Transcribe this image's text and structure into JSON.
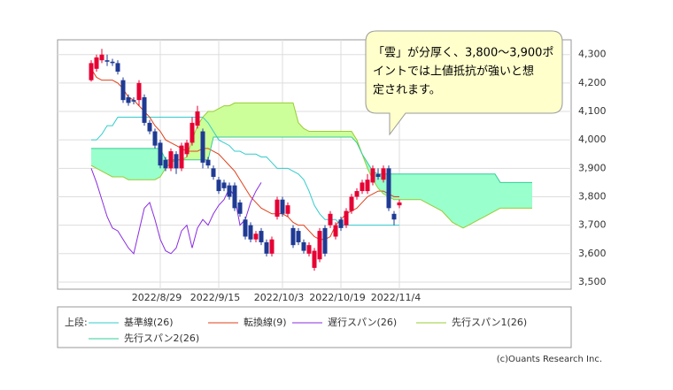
{
  "chart_data": {
    "type": "ichimoku",
    "legend_title": "上段:",
    "annotation": [
      "「雲」が分厚く、3,800～3,900ポ",
      "イントでは上値抵抗が強いと想",
      "定されます。"
    ],
    "source": "(c)Ouants Research Inc.",
    "ylim": [
      3475,
      4352
    ],
    "yticks": [
      {
        "value": 3500,
        "label": "3,500"
      },
      {
        "value": 3600,
        "label": "3,600"
      },
      {
        "value": 3700,
        "label": "3,700"
      },
      {
        "value": 3800,
        "label": "3,800"
      },
      {
        "value": 3900,
        "label": "3,900"
      },
      {
        "value": 4000,
        "label": "4,000"
      },
      {
        "value": 4100,
        "label": "4,100"
      },
      {
        "value": 4200,
        "label": "4,200"
      },
      {
        "value": 4300,
        "label": "4,300"
      }
    ],
    "grid": true,
    "up_color": "#e60033",
    "down_color": "#1f3a93",
    "cloud_up_color": "#ccff99",
    "cloud_down_color": "#99ffcc",
    "categories": [
      null,
      null,
      null,
      null,
      null,
      null,
      null,
      null,
      null,
      null,
      null,
      null,
      null,
      "2022/8/29",
      null,
      null,
      null,
      null,
      null,
      null,
      null,
      null,
      null,
      null,
      "2022/9/15",
      null,
      null,
      null,
      null,
      null,
      null,
      null,
      null,
      null,
      null,
      null,
      "2022/10/3",
      null,
      null,
      null,
      null,
      null,
      null,
      null,
      null,
      null,
      null,
      "2022/10/19",
      null,
      null,
      null,
      null,
      null,
      null,
      null,
      null,
      null,
      null,
      "2022/11/4",
      null,
      null,
      null,
      null,
      null,
      null,
      null,
      null,
      null,
      null,
      null,
      null,
      null,
      null,
      null,
      null,
      null,
      null,
      null,
      null,
      null,
      null,
      null,
      null,
      null
    ],
    "open": [
      4210,
      4250,
      4280,
      4280,
      4275,
      4270,
      4210,
      4150,
      4140,
      4140,
      4150,
      4060,
      4030,
      3990,
      3930,
      3900,
      3950,
      3900,
      3950,
      3990,
      4050,
      4030,
      3930,
      3900,
      3860,
      3850,
      3840,
      3840,
      3780,
      3720,
      3700,
      3650,
      3680,
      3640,
      3600,
      3730,
      3790,
      3740,
      3690,
      3680,
      3640,
      3600,
      3550,
      3580,
      3690,
      3700,
      3660,
      3720,
      3700,
      3750,
      3800,
      3820,
      3820,
      3850,
      3880,
      3860,
      3900,
      3740,
      3770,
      null,
      null,
      null,
      null,
      null,
      null,
      null,
      null,
      null,
      null,
      null,
      null,
      null,
      null,
      null,
      null,
      null,
      null,
      null,
      null,
      null,
      null,
      null,
      null,
      null
    ],
    "high": [
      4280,
      4300,
      4320,
      4300,
      4285,
      4280,
      4220,
      4160,
      4150,
      4210,
      4160,
      4070,
      4040,
      4000,
      3940,
      3970,
      3960,
      3990,
      4000,
      4080,
      4120,
      4040,
      3940,
      3910,
      3870,
      3860,
      3850,
      3850,
      3790,
      3730,
      3710,
      3680,
      3690,
      3650,
      3660,
      3800,
      3800,
      3780,
      3700,
      3690,
      3650,
      3640,
      3620,
      3690,
      3700,
      3750,
      3710,
      3730,
      3760,
      3810,
      3830,
      3860,
      3880,
      3910,
      3900,
      3910,
      3910,
      3750,
      3790,
      null,
      null,
      null,
      null,
      null,
      null,
      null,
      null,
      null,
      null,
      null,
      null,
      null,
      null,
      null,
      null,
      null,
      null,
      null,
      null,
      null,
      null,
      null,
      null,
      null
    ],
    "low": [
      4205,
      4240,
      4270,
      4260,
      4260,
      4230,
      4130,
      4120,
      4125,
      4120,
      4050,
      4020,
      3970,
      3900,
      3890,
      3890,
      3880,
      3890,
      3940,
      3980,
      4040,
      3900,
      3900,
      3860,
      3810,
      3820,
      3790,
      3750,
      3730,
      3650,
      3640,
      3640,
      3630,
      3590,
      3590,
      3720,
      3730,
      3730,
      3620,
      3630,
      3600,
      3590,
      3540,
      3570,
      3590,
      3690,
      3650,
      3680,
      3690,
      3740,
      3790,
      3810,
      3810,
      3840,
      3860,
      3850,
      3750,
      3700,
      3760,
      null,
      null,
      null,
      null,
      null,
      null,
      null,
      null,
      null,
      null,
      null,
      null,
      null,
      null,
      null,
      null,
      null,
      null,
      null,
      null,
      null,
      null,
      null,
      null,
      null
    ],
    "close": [
      4270,
      4290,
      4300,
      4275,
      4270,
      4240,
      4140,
      4130,
      4135,
      4200,
      4060,
      4030,
      3980,
      3910,
      3900,
      3960,
      3900,
      3980,
      3990,
      4060,
      4100,
      3920,
      3910,
      3870,
      3820,
      3830,
      3800,
      3760,
      3740,
      3660,
      3650,
      3670,
      3640,
      3600,
      3650,
      3790,
      3740,
      3770,
      3630,
      3640,
      3610,
      3630,
      3610,
      3680,
      3600,
      3740,
      3700,
      3690,
      3750,
      3800,
      3820,
      3850,
      3860,
      3900,
      3870,
      3900,
      3760,
      3720,
      3780,
      null,
      null,
      null,
      null,
      null,
      null,
      null,
      null,
      null,
      null,
      null,
      null,
      null,
      null,
      null,
      null,
      null,
      null,
      null,
      null,
      null,
      null,
      null,
      null,
      null
    ],
    "series": [
      {
        "name": "基準線(26)",
        "color": "#33cccc",
        "values": [
          4000,
          4000,
          4020,
          4050,
          4050,
          4080,
          4080,
          4080,
          4080,
          4080,
          4080,
          4080,
          4080,
          4080,
          4080,
          4080,
          4080,
          4080,
          4080,
          4080,
          4080,
          4080,
          4060,
          4030,
          4000,
          3990,
          3980,
          3960,
          3960,
          3950,
          3950,
          3950,
          3940,
          3940,
          3920,
          3900,
          3900,
          3900,
          3890,
          3880,
          3860,
          3820,
          3770,
          3740,
          3720,
          3720,
          3720,
          3700,
          3700,
          3700,
          3700,
          3700,
          3700,
          3700,
          3700,
          3700,
          3700,
          3700,
          3700,
          null,
          null,
          null,
          null,
          null,
          null,
          null,
          null,
          null,
          null,
          null,
          null,
          null,
          null,
          null,
          null,
          null,
          null,
          null,
          null,
          null,
          null,
          null,
          null,
          null
        ]
      },
      {
        "name": "転換線(9)",
        "color": "#e0401a",
        "values": [
          4250,
          4220,
          4210,
          4210,
          4210,
          4200,
          4180,
          4150,
          4140,
          4120,
          4100,
          4080,
          4050,
          4030,
          4000,
          3990,
          3980,
          3970,
          3960,
          3960,
          3960,
          3970,
          3970,
          3960,
          3950,
          3930,
          3910,
          3890,
          3860,
          3830,
          3800,
          3780,
          3760,
          3750,
          3740,
          3740,
          3740,
          3730,
          3710,
          3700,
          3700,
          3680,
          3660,
          3650,
          3650,
          3660,
          3700,
          3720,
          3740,
          3750,
          3760,
          3780,
          3800,
          3810,
          3820,
          3820,
          3810,
          3800,
          3800,
          null,
          null,
          null,
          null,
          null,
          null,
          null,
          null,
          null,
          null,
          null,
          null,
          null,
          null,
          null,
          null,
          null,
          null,
          null,
          null,
          null,
          null,
          null,
          null,
          null
        ]
      },
      {
        "name": "遅行スパン(26)",
        "color": "#8a2be2",
        "values": [
          3900,
          3850,
          3790,
          3730,
          3690,
          3680,
          3650,
          3620,
          3600,
          3680,
          3760,
          3780,
          3720,
          3650,
          3610,
          3600,
          3620,
          3680,
          3700,
          3620,
          3690,
          3720,
          3700,
          3740,
          3770,
          3790,
          3830,
          3800,
          3700,
          3720,
          3780,
          3820,
          3850,
          null,
          null,
          null,
          null,
          null,
          null,
          null,
          null,
          null,
          null,
          null,
          null,
          null,
          null,
          null,
          null,
          null,
          null,
          null,
          null,
          null,
          null,
          null,
          null,
          null,
          null,
          null,
          null,
          null,
          null,
          null,
          null,
          null,
          null,
          null,
          null,
          null,
          null,
          null,
          null,
          null,
          null,
          null,
          null,
          null,
          null,
          null,
          null,
          null,
          null,
          null
        ]
      },
      {
        "name": "先行スパン1(26)",
        "color": "#99cc33",
        "values": [
          3910,
          3900,
          3890,
          3880,
          3870,
          3870,
          3870,
          3860,
          3860,
          3860,
          3860,
          3860,
          3860,
          3870,
          3900,
          3920,
          3930,
          3930,
          3940,
          4000,
          4050,
          4080,
          4100,
          4100,
          4110,
          4120,
          4120,
          4130,
          4130,
          4130,
          4130,
          4130,
          4130,
          4130,
          4130,
          4130,
          4130,
          4130,
          4130,
          4060,
          4040,
          4030,
          4030,
          4030,
          4030,
          4030,
          4030,
          4030,
          4030,
          4030,
          4000,
          3950,
          3900,
          3860,
          3830,
          3810,
          3800,
          3790,
          3790,
          3790,
          3790,
          3790,
          3790,
          3780,
          3770,
          3760,
          3750,
          3730,
          3710,
          3700,
          3690,
          3700,
          3710,
          3720,
          3730,
          3740,
          3750,
          3760,
          3760,
          3760,
          3760,
          3760,
          3760,
          3760
        ]
      },
      {
        "name": "先行スパン2(26)",
        "color": "#33cc99",
        "values": [
          3970,
          3970,
          3970,
          3970,
          3970,
          3970,
          3970,
          3970,
          3970,
          3970,
          3970,
          3970,
          3970,
          3970,
          3930,
          3930,
          3930,
          3930,
          3930,
          3930,
          3930,
          3930,
          3930,
          4010,
          4010,
          4010,
          4010,
          4010,
          4010,
          4010,
          4010,
          4010,
          4010,
          4010,
          4010,
          4010,
          4010,
          4010,
          4010,
          4010,
          4010,
          4010,
          4010,
          4010,
          4010,
          4010,
          4010,
          4010,
          4010,
          4010,
          3990,
          3950,
          3920,
          3890,
          3880,
          3880,
          3880,
          3880,
          3880,
          3880,
          3880,
          3880,
          3880,
          3880,
          3880,
          3880,
          3880,
          3880,
          3880,
          3880,
          3880,
          3880,
          3880,
          3880,
          3880,
          3880,
          3880,
          3850,
          3850,
          3850,
          3850,
          3850,
          3850,
          3850
        ]
      }
    ]
  }
}
